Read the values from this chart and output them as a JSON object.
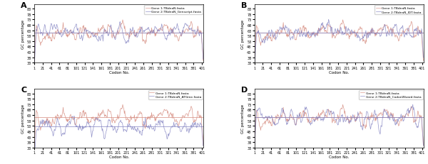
{
  "panels": [
    {
      "label": "A",
      "legend1": "Gene 1:TBdnaN.fasta",
      "legend2": "Gene 2:TBdnaN_Genscript.fasta",
      "hline1": 0.608,
      "hline2": 0.608
    },
    {
      "label": "B",
      "legend1": "Gene 1:TBdnaN.fasta",
      "legend2": "Gene 2:TBdnaN_IDT.fasta",
      "hline1": 0.608,
      "hline2": 0.608
    },
    {
      "label": "C",
      "legend1": "Gene 1:TBdnaN.fasta",
      "legend2": "Gene 2:TBdnaN_ATGme.fasta",
      "hline1": 0.608,
      "hline2": 0.525
    },
    {
      "label": "D",
      "legend1": "Gene 1:TBdnaN.fasta",
      "legend2": "Gene 2:TBdnaN_CodonWizard.fasta",
      "hline1": 0.608,
      "hline2": 0.608
    }
  ],
  "n_codons": 404,
  "window": 10,
  "ylim": [
    33,
    87
  ],
  "yticks": [
    33,
    38,
    43,
    48,
    53,
    58,
    63,
    68,
    73,
    78,
    83
  ],
  "xticks": [
    1,
    21,
    41,
    61,
    81,
    101,
    121,
    141,
    161,
    181,
    201,
    221,
    241,
    261,
    281,
    301,
    321,
    341,
    361,
    381,
    401
  ],
  "xlabel": "Codon No.",
  "ylabel": "GC percentage",
  "color1": "#d4877a",
  "color2": "#8080c0",
  "hline_color1": "#d4877a",
  "hline_color2": "#8080c0",
  "background": "#ffffff",
  "seed": 42
}
